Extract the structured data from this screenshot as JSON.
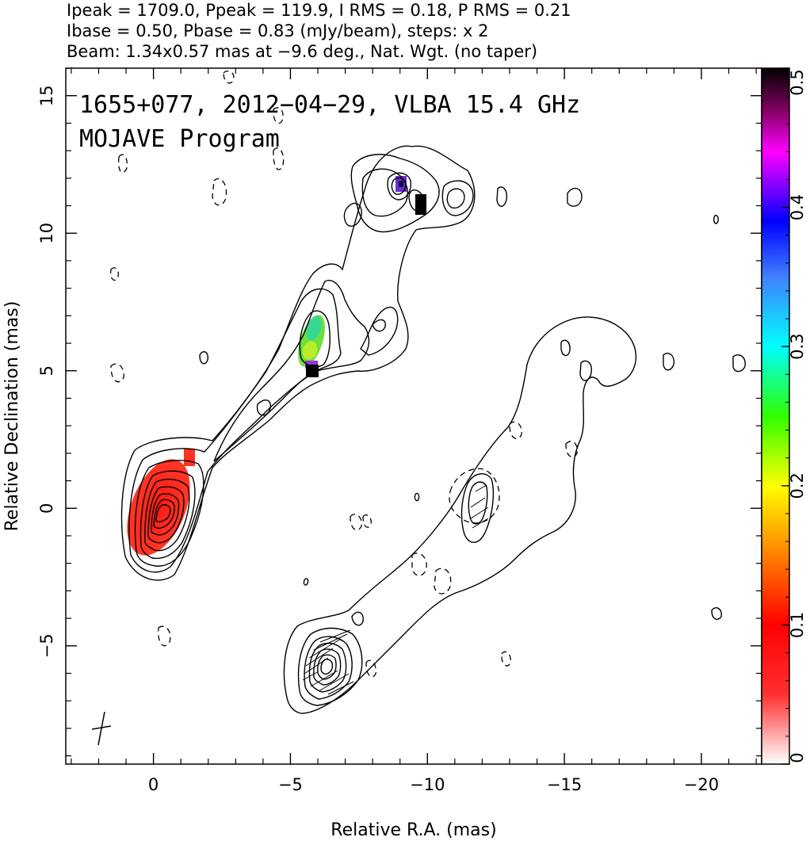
{
  "header": {
    "line1": "Ipeak = 1709.0, Ppeak = 119.9, I RMS = 0.18, P RMS = 0.21",
    "line2": "Ibase = 0.50, Pbase = 0.83 (mJy/beam), steps: x 2",
    "line3": "Beam: 1.34x0.57 mas at −9.6 deg., Nat. Wgt. (no taper)"
  },
  "plot_title": {
    "line1": "1655+077, 2012−04−29, VLBA 15.4 GHz",
    "line2": "MOJAVE Program"
  },
  "chart_data": {
    "type": "heatmap",
    "xlabel": "Relative R.A. (mas)",
    "ylabel": "Relative Declination (mas)",
    "xlim": [
      3.2,
      -22.2
    ],
    "ylim": [
      -9.3,
      16.0
    ],
    "x_ticks": [
      {
        "value": 0,
        "label": "0"
      },
      {
        "value": -5,
        "label": "−5"
      },
      {
        "value": -10,
        "label": "−10"
      },
      {
        "value": -15,
        "label": "−15"
      },
      {
        "value": -20,
        "label": "−20"
      }
    ],
    "y_ticks": [
      {
        "value": -5,
        "label": "−5"
      },
      {
        "value": 0,
        "label": "0"
      },
      {
        "value": 5,
        "label": "5"
      },
      {
        "value": 10,
        "label": "10"
      },
      {
        "value": 15,
        "label": "15"
      }
    ],
    "colorbar": {
      "range": [
        0,
        0.5
      ],
      "ticks": [
        {
          "value": 0,
          "label": "0"
        },
        {
          "value": 0.1,
          "label": "0.1"
        },
        {
          "value": 0.2,
          "label": "0.2"
        },
        {
          "value": 0.3,
          "label": "0.3"
        },
        {
          "value": 0.4,
          "label": "0.4"
        },
        {
          "value": 0.5,
          "label": "0.5"
        }
      ],
      "colors": [
        "#ffffff",
        "#ff0000",
        "#ff8000",
        "#ffff00",
        "#00ff00",
        "#00ffff",
        "#0000ff",
        "#ff00ff",
        "#000000"
      ]
    },
    "jet_components": [
      {
        "x": 0.0,
        "y": 0.0,
        "fractional_polarization": 0.08,
        "color": "#ff2a1a"
      },
      {
        "x": -1.2,
        "y": 2.0,
        "fractional_polarization": 0.1,
        "color": "#ff3322"
      },
      {
        "x": -5.7,
        "y": 6.2,
        "fractional_polarization": 0.23,
        "color": "#5fd93a"
      },
      {
        "x": -5.6,
        "y": 5.2,
        "fractional_polarization": 0.5,
        "color": "#000000"
      },
      {
        "x": -8.8,
        "y": 11.7,
        "fractional_polarization": 0.4,
        "color": "#6a2bd0"
      },
      {
        "x": -9.6,
        "y": 11.1,
        "fractional_polarization": 0.5,
        "color": "#000000"
      }
    ],
    "polarization_image_offset": {
      "x": -6.0,
      "y": -6.0
    },
    "beam": {
      "major_mas": 1.34,
      "minor_mas": 0.57,
      "pa_deg": -9.6,
      "x": -2.0,
      "y": -8.0
    },
    "grid": false
  }
}
